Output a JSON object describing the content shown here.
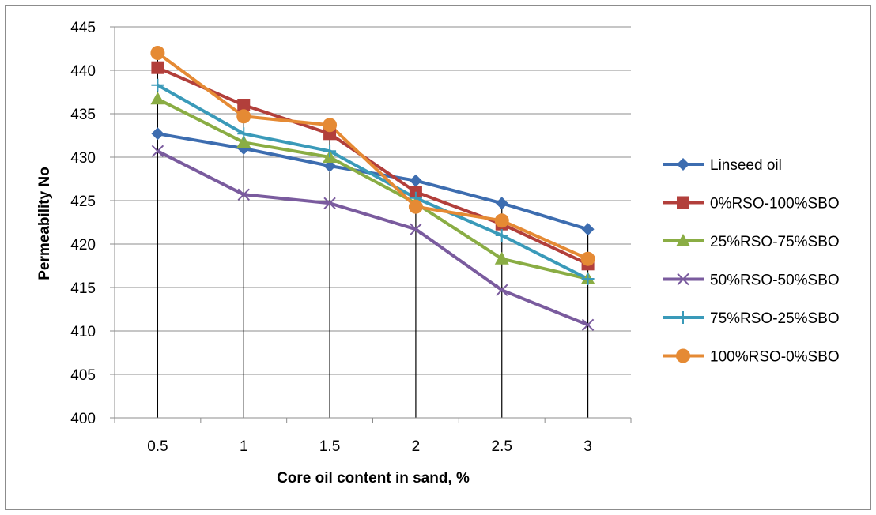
{
  "chart_data": {
    "type": "line",
    "title": "",
    "xlabel": "Core oil content in sand, %",
    "ylabel": "Permeability No",
    "categories": [
      "0.5",
      "1",
      "1.5",
      "2",
      "2.5",
      "3"
    ],
    "ylim": [
      400,
      445
    ],
    "ytick_step": 5,
    "grid": "horizontal",
    "drop_lines": true,
    "legend_position": "right",
    "series": [
      {
        "name": "Linseed oil",
        "values": [
          432.7,
          431.0,
          429.0,
          427.3,
          424.7,
          421.7
        ],
        "color": "#3d6db0",
        "marker": "diamond"
      },
      {
        "name": "0%RSO-100%SBO",
        "values": [
          440.3,
          436.0,
          432.7,
          426.0,
          422.3,
          417.7
        ],
        "color": "#b23f3b",
        "marker": "square"
      },
      {
        "name": "25%RSO-75%SBO",
        "values": [
          436.7,
          431.7,
          430.0,
          424.7,
          418.3,
          416.0
        ],
        "color": "#8aad44",
        "marker": "triangle"
      },
      {
        "name": "50%RSO-50%SBO",
        "values": [
          430.7,
          425.7,
          424.7,
          421.7,
          414.7,
          410.7
        ],
        "color": "#7a5b9e",
        "marker": "x"
      },
      {
        "name": "75%RSO-25%SBO",
        "values": [
          438.3,
          432.7,
          430.7,
          425.3,
          421.0,
          416.0
        ],
        "color": "#3a9ab9",
        "marker": "plus"
      },
      {
        "name": "100%RSO-0%SBO",
        "values": [
          442.0,
          434.7,
          433.7,
          424.3,
          422.7,
          418.3
        ],
        "color": "#e58a34",
        "marker": "circle"
      }
    ]
  }
}
